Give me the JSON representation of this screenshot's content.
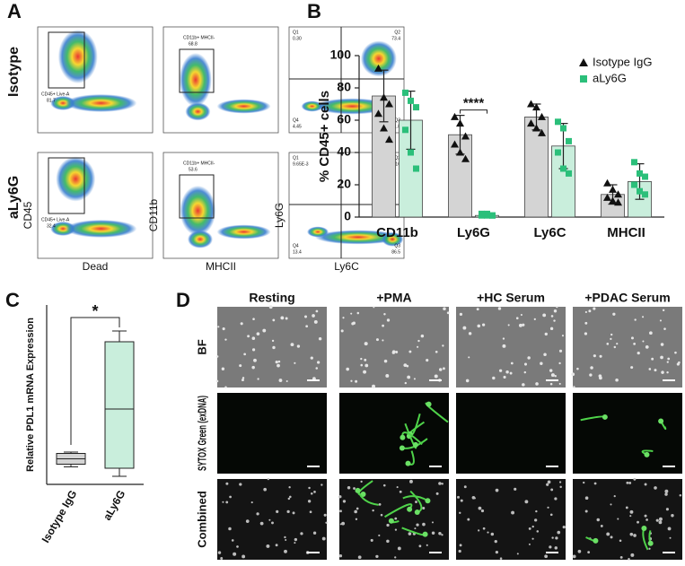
{
  "panel_labels": [
    "A",
    "B",
    "C",
    "D"
  ],
  "panel_a": {
    "row_labels": [
      "Isotype",
      "aLy6G"
    ],
    "axes": [
      {
        "x": "Dead",
        "y": "CD45"
      },
      {
        "x": "MHCII",
        "y": "CD11b"
      },
      {
        "x": "Ly6C",
        "y": "Ly6G"
      }
    ],
    "rows": [
      {
        "gate1": {
          "name": "CD45+ Live-A",
          "value": "81.7"
        },
        "gate2": {
          "name": "CD11b+ MHCII-",
          "value": "68.8"
        },
        "quadrants": [
          {
            "label": "Q1",
            "value": "0.30"
          },
          {
            "label": "Q2",
            "value": "73.4"
          },
          {
            "label": "Q4",
            "value": "4.45"
          },
          {
            "label": "Q3",
            "value": "21.8"
          }
        ]
      },
      {
        "gate1": {
          "name": "CD45+ Live-A",
          "value": "32.4"
        },
        "gate2": {
          "name": "CD11b+ MHCII-",
          "value": "53.6"
        },
        "quadrants": [
          {
            "label": "Q1",
            "value": "9.65E-3"
          },
          {
            "label": "Q2",
            "value": "0.16"
          },
          {
            "label": "Q4",
            "value": "13.4"
          },
          {
            "label": "Q3",
            "value": "86.5"
          }
        ]
      }
    ]
  },
  "chart_data": [
    {
      "type": "bar",
      "ylabel": "% CD45+ cells",
      "categories": [
        "CD11b",
        "Ly6G",
        "Ly6C",
        "MHCII"
      ],
      "series": [
        {
          "name": "Isotype IgG",
          "color": "#d4d4d4",
          "marker_color": "#111111",
          "marker": "triangle",
          "values": [
            75,
            51,
            62,
            14
          ],
          "errors": [
            16,
            12,
            8,
            6
          ],
          "points": [
            [
              92,
              74,
              70,
              64,
              55,
              48
            ],
            [
              62,
              58,
              50,
              45,
              40,
              36
            ],
            [
              70,
              68,
              62,
              58,
              55,
              52
            ],
            [
              21,
              17,
              14,
              12,
              10,
              9
            ]
          ]
        },
        {
          "name": "aLy6G",
          "color": "#c9eedc",
          "marker_color": "#2bbf7a",
          "marker": "square",
          "values": [
            60,
            1,
            44,
            22
          ],
          "errors": [
            18,
            1,
            14,
            11
          ],
          "points": [
            [
              77,
              72,
              68,
              54,
              40,
              30
            ],
            [
              2,
              1,
              1,
              1,
              2,
              1
            ],
            [
              59,
              55,
              47,
              40,
              30,
              27
            ],
            [
              34,
              27,
              25,
              20,
              16,
              14
            ]
          ]
        }
      ],
      "ylim": [
        0,
        100
      ],
      "yticks": [
        0,
        20,
        40,
        60,
        80,
        100
      ],
      "legend": "upper right",
      "annotation": {
        "text": "****",
        "category": 1
      }
    },
    {
      "type": "box",
      "ylabel": "Relative PDL1 mRNA Expression",
      "categories": [
        "Isotype IgG",
        "aLy6G"
      ],
      "colors": [
        "#d4d4d4",
        "#c9eedc"
      ],
      "boxes": [
        {
          "min": 0.65,
          "q1": 0.75,
          "median": 0.95,
          "q3": 1.15,
          "max": 1.2
        },
        {
          "min": 0.3,
          "q1": 0.6,
          "median": 2.8,
          "q3": 5.3,
          "max": 5.7
        }
      ],
      "ylim": [
        0,
        6
      ],
      "annotation": "*"
    }
  ],
  "panel_d": {
    "columns": [
      "Resting",
      "+PMA",
      "+HC Serum",
      "+PDAC Serum"
    ],
    "rows": [
      "BF",
      "SYTOX Green (exDNA)",
      "Combined"
    ]
  }
}
